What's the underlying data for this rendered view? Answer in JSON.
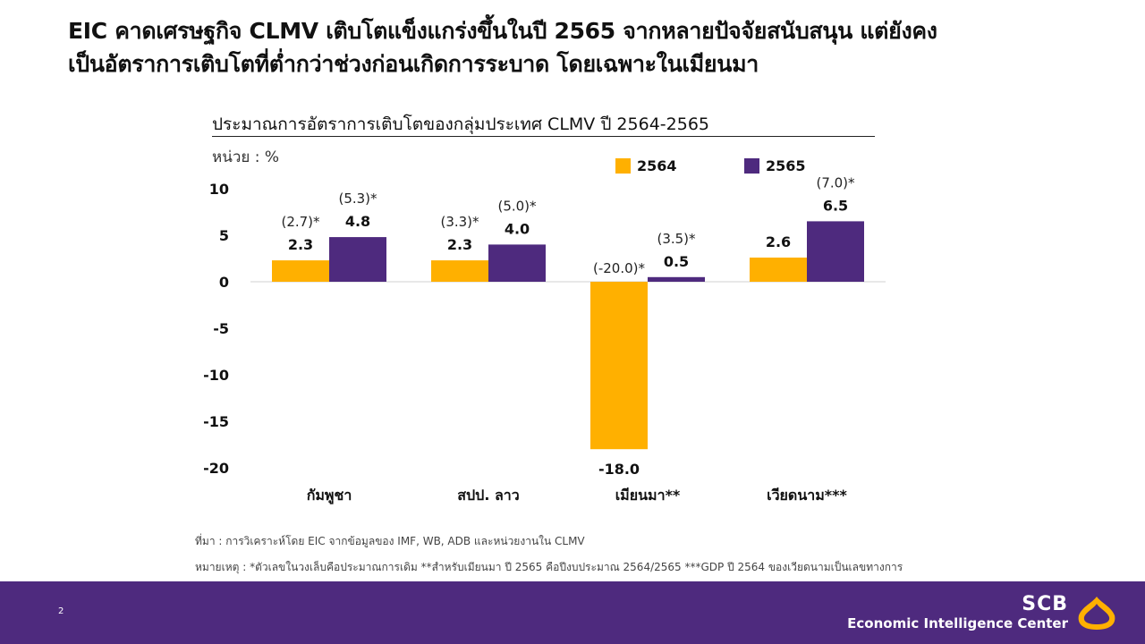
{
  "headline": {
    "line1": "EIC คาดเศรษฐกิจ CLMV เติบโตแข็งแกร่งขึ้นในปี 2565 จากหลายปัจจัยสนับสนุน แต่ยังคง",
    "line2": "เป็นอัตราการเติบโตที่ต่ำกว่าช่วงก่อนเกิดการระบาด โดยเฉพาะในเมียนมา"
  },
  "colors": {
    "y2564": "#FFB000",
    "y2565": "#4E2A7E",
    "footer": "#4E2A7E",
    "logo": "#FFB000"
  },
  "chart_data": {
    "type": "bar",
    "title": "ประมาณการอัตราการเติบโตของกลุ่มประเทศ CLMV ปี 2564-2565",
    "unit_label": "หน่วย : %",
    "categories": [
      "กัมพูชา",
      "สปป. ลาว",
      "เมียนมา**",
      "เวียดนาม***"
    ],
    "series": [
      {
        "name": "2564",
        "values": [
          2.3,
          2.3,
          -18.0,
          2.6
        ],
        "labels": [
          "2.3",
          "2.3",
          "-18.0",
          "2.6"
        ],
        "prior": [
          "(2.7)*",
          "(3.3)*",
          "(-20.0)*",
          ""
        ]
      },
      {
        "name": "2565",
        "values": [
          4.8,
          4.0,
          0.5,
          6.5
        ],
        "labels": [
          "4.8",
          "4.0",
          "0.5",
          "6.5"
        ],
        "prior": [
          "(5.3)*",
          "(5.0)*",
          "(3.5)*",
          "(7.0)*"
        ]
      }
    ],
    "ylim": [
      -20,
      10
    ],
    "yticks": [
      "10",
      "5",
      "0",
      "-5",
      "-10",
      "-15",
      "-20"
    ],
    "legend": "top-right",
    "grid": false
  },
  "source": "ที่มา : การวิเคราะห์โดย EIC จากข้อมูลของ IMF, WB, ADB และหน่วยงานใน CLMV",
  "note": "หมายเหตุ : *ตัวเลขในวงเล็บคือประมาณการเดิม **สำหรับเมียนมา ปี 2565 คือปีงบประมาณ 2564/2565 ***GDP ปี 2564 ของเวียดนามเป็นเลขทางการ",
  "footer": {
    "page_number": "2",
    "brand_name": "SCB",
    "brand_sub": "Economic Intelligence Center"
  }
}
